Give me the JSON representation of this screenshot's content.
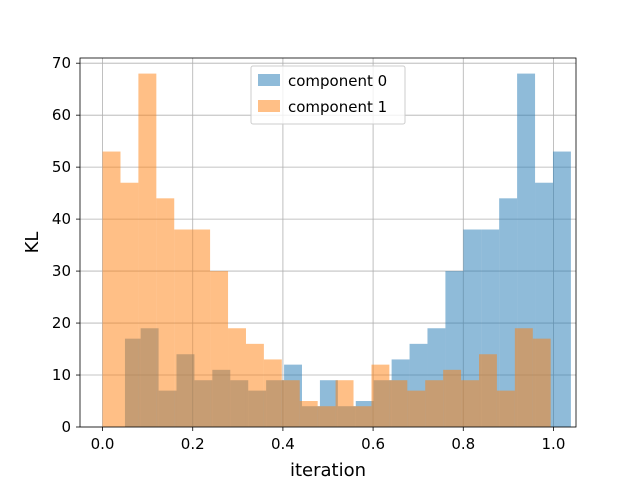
{
  "chart_data": {
    "type": "bar",
    "subtype": "histogram-overlay",
    "xlabel": "iteration",
    "ylabel": "KL",
    "xlim": [
      -0.05,
      1.05
    ],
    "ylim": [
      0,
      71
    ],
    "bin_width": 0.0497,
    "bin_edges": [
      0.0,
      0.0497,
      0.0994,
      0.1491,
      0.1988,
      0.2485,
      0.2982,
      0.3479,
      0.3976,
      0.4473,
      0.497,
      0.5467,
      0.5964,
      0.6461,
      0.6958,
      0.7455,
      0.7952,
      0.8449,
      0.8946,
      0.9443,
      0.994
    ],
    "x_ticks": [
      0.0,
      0.2,
      0.4,
      0.6,
      0.8,
      1.0
    ],
    "x_tick_labels": [
      "0.0",
      "0.2",
      "0.4",
      "0.6",
      "0.8",
      "1.0"
    ],
    "y_ticks": [
      0,
      10,
      20,
      30,
      40,
      50,
      60,
      70
    ],
    "y_tick_labels": [
      "0",
      "10",
      "20",
      "30",
      "40",
      "50",
      "60",
      "70"
    ],
    "grid": true,
    "legend_position": "top-center",
    "series": [
      {
        "name": "component 0",
        "color": "#1f77b4",
        "alpha": 0.5,
        "bins": [
          {
            "x0": 0.0497,
            "x1": 0.0845,
            "v": 17
          },
          {
            "x0": 0.0845,
            "x1": 0.1243,
            "v": 19
          },
          {
            "x0": 0.1243,
            "x1": 0.164,
            "v": 7
          },
          {
            "x0": 0.164,
            "x1": 0.2038,
            "v": 14
          },
          {
            "x0": 0.2038,
            "x1": 0.2435,
            "v": 9
          },
          {
            "x0": 0.2435,
            "x1": 0.2833,
            "v": 11
          },
          {
            "x0": 0.2833,
            "x1": 0.3231,
            "v": 9
          },
          {
            "x0": 0.3231,
            "x1": 0.3628,
            "v": 7
          },
          {
            "x0": 0.3628,
            "x1": 0.4026,
            "v": 9
          },
          {
            "x0": 0.4026,
            "x1": 0.4423,
            "v": 12
          },
          {
            "x0": 0.4423,
            "x1": 0.4821,
            "v": 4
          },
          {
            "x0": 0.4821,
            "x1": 0.5218,
            "v": 9
          },
          {
            "x0": 0.5218,
            "x1": 0.5616,
            "v": 4
          },
          {
            "x0": 0.5616,
            "x1": 0.6014,
            "v": 5
          },
          {
            "x0": 0.6014,
            "x1": 0.6411,
            "v": 9
          },
          {
            "x0": 0.6411,
            "x1": 0.6809,
            "v": 13
          },
          {
            "x0": 0.6809,
            "x1": 0.7206,
            "v": 16
          },
          {
            "x0": 0.7206,
            "x1": 0.7604,
            "v": 19
          },
          {
            "x0": 0.7604,
            "x1": 0.8001,
            "v": 30
          },
          {
            "x0": 0.8001,
            "x1": 0.8399,
            "v": 38
          },
          {
            "x0": 0.8399,
            "x1": 0.8796,
            "v": 38
          },
          {
            "x0": 0.8796,
            "x1": 0.9194,
            "v": 44
          },
          {
            "x0": 0.9194,
            "x1": 0.9592,
            "v": 68
          },
          {
            "x0": 0.9592,
            "x1": 0.9989,
            "v": 47
          },
          {
            "x0": 0.9989,
            "x1": 1.0387,
            "v": 53
          }
        ]
      },
      {
        "name": "component 1",
        "color": "#ff7f0e",
        "alpha": 0.5,
        "bins": [
          {
            "x0": 0.0,
            "x1": 0.0398,
            "v": 53
          },
          {
            "x0": 0.0398,
            "x1": 0.0795,
            "v": 47
          },
          {
            "x0": 0.0795,
            "x1": 0.1193,
            "v": 68
          },
          {
            "x0": 0.1193,
            "x1": 0.159,
            "v": 44
          },
          {
            "x0": 0.159,
            "x1": 0.1988,
            "v": 38
          },
          {
            "x0": 0.1988,
            "x1": 0.2385,
            "v": 38
          },
          {
            "x0": 0.2385,
            "x1": 0.2783,
            "v": 30
          },
          {
            "x0": 0.2783,
            "x1": 0.3181,
            "v": 19
          },
          {
            "x0": 0.3181,
            "x1": 0.3578,
            "v": 16
          },
          {
            "x0": 0.3578,
            "x1": 0.3976,
            "v": 13
          },
          {
            "x0": 0.3976,
            "x1": 0.4373,
            "v": 9
          },
          {
            "x0": 0.4373,
            "x1": 0.4771,
            "v": 5
          },
          {
            "x0": 0.4771,
            "x1": 0.5168,
            "v": 4
          },
          {
            "x0": 0.5168,
            "x1": 0.5566,
            "v": 9
          },
          {
            "x0": 0.5566,
            "x1": 0.5964,
            "v": 4
          },
          {
            "x0": 0.5964,
            "x1": 0.6361,
            "v": 12
          },
          {
            "x0": 0.6361,
            "x1": 0.6759,
            "v": 9
          },
          {
            "x0": 0.6759,
            "x1": 0.7156,
            "v": 7
          },
          {
            "x0": 0.7156,
            "x1": 0.7554,
            "v": 9
          },
          {
            "x0": 0.7554,
            "x1": 0.7951,
            "v": 11
          },
          {
            "x0": 0.7951,
            "x1": 0.8349,
            "v": 9
          },
          {
            "x0": 0.8349,
            "x1": 0.8746,
            "v": 14
          },
          {
            "x0": 0.8746,
            "x1": 0.9144,
            "v": 7
          },
          {
            "x0": 0.9144,
            "x1": 0.9542,
            "v": 19
          },
          {
            "x0": 0.9542,
            "x1": 0.9939,
            "v": 17
          }
        ]
      }
    ]
  }
}
